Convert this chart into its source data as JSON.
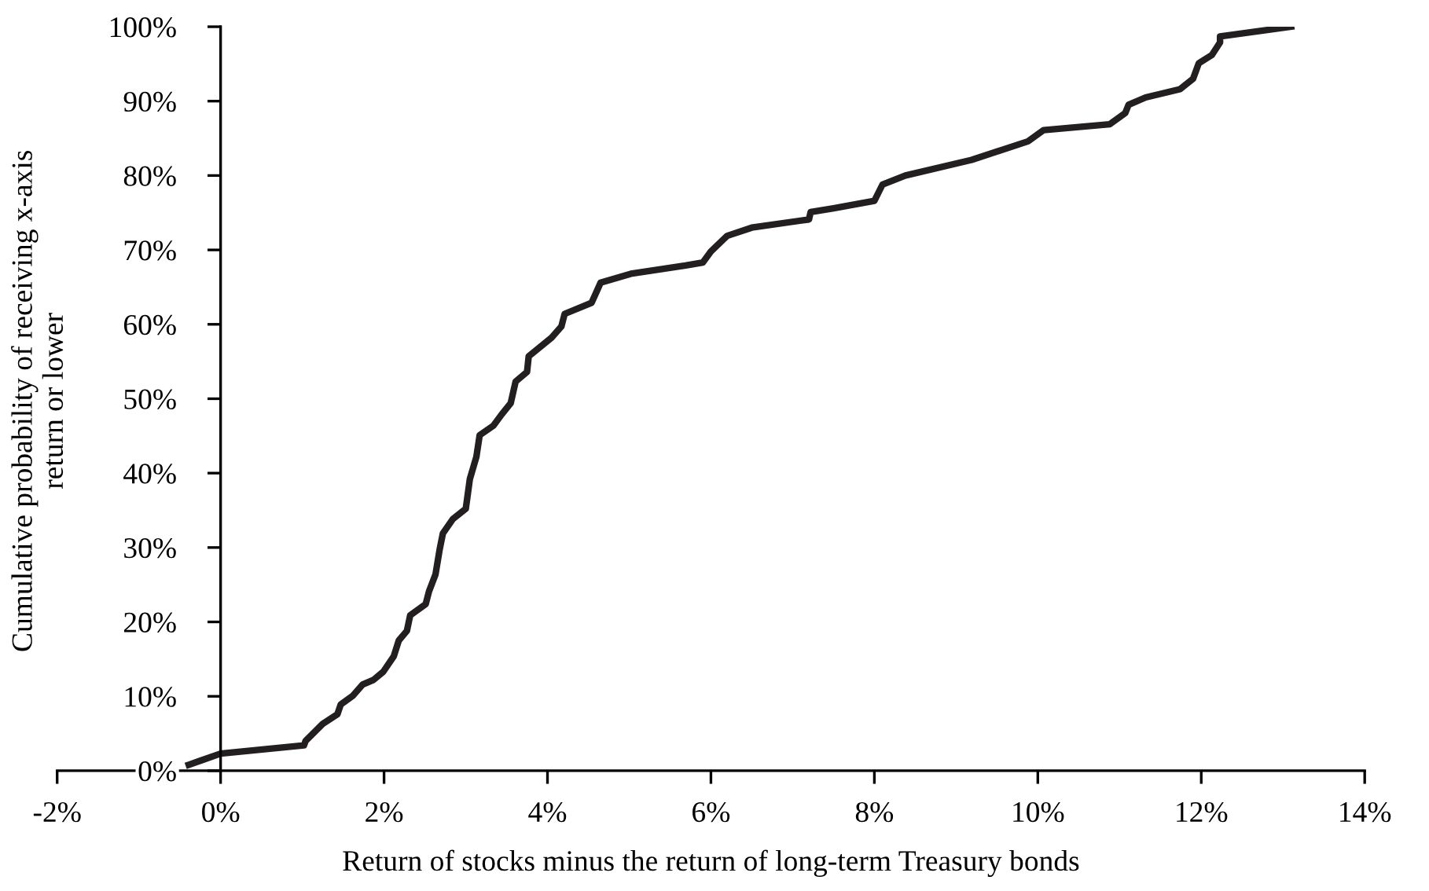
{
  "chart_data": {
    "type": "line",
    "xlabel": "Return of stocks minus the return of long-term Treasury bonds",
    "ylabel": "Cumulative probability of receiving x-axis\nreturn or lower",
    "series": [
      {
        "color": "#231f20",
        "x": [
          -0.39,
          0,
          1.02,
          1.04,
          1.25,
          1.43,
          1.47,
          1.62,
          1.74,
          1.87,
          1.99,
          2.12,
          2.18,
          2.28,
          2.32,
          2.51,
          2.55,
          2.63,
          2.68,
          2.72,
          2.84,
          3.0,
          3.05,
          3.13,
          3.17,
          3.34,
          3.44,
          3.55,
          3.61,
          3.75,
          3.77,
          4.05,
          4.17,
          4.21,
          4.54,
          4.65,
          5.02,
          5.69,
          5.9,
          6.0,
          6.2,
          6.5,
          7.2,
          7.22,
          7.5,
          8.0,
          8.1,
          8.38,
          9.19,
          9.88,
          10.07,
          10.88,
          11.07,
          11.11,
          11.32,
          11.74,
          11.9,
          11.97,
          12.13,
          12.23,
          12.23,
          13.1
        ],
        "values": [
          0.8,
          2.3,
          3.4,
          4.0,
          6.3,
          7.6,
          8.9,
          10.1,
          11.6,
          12.2,
          13.3,
          15.4,
          17.5,
          18.8,
          20.9,
          22.4,
          24.1,
          26.4,
          29.7,
          31.9,
          33.8,
          35.2,
          39.2,
          42.2,
          45.1,
          46.4,
          47.9,
          49.4,
          52.3,
          53.6,
          55.7,
          58.2,
          59.7,
          61.4,
          62.9,
          65.6,
          66.8,
          67.9,
          68.3,
          69.8,
          71.9,
          73.0,
          74.1,
          75.1,
          75.6,
          76.6,
          78.8,
          80.0,
          82.1,
          84.6,
          86.1,
          86.9,
          88.4,
          89.5,
          90.5,
          91.6,
          93.0,
          95.1,
          96.2,
          97.9,
          98.7,
          100
        ]
      }
    ],
    "xlim": [
      -2,
      14
    ],
    "ylim": [
      0,
      100
    ],
    "xticks": [
      {
        "value": -2,
        "label": "-2%"
      },
      {
        "value": 0,
        "label": "0%"
      },
      {
        "value": 2,
        "label": "2%"
      },
      {
        "value": 4,
        "label": "4%"
      },
      {
        "value": 6,
        "label": "6%"
      },
      {
        "value": 8,
        "label": "8%"
      },
      {
        "value": 10,
        "label": "10%"
      },
      {
        "value": 12,
        "label": "12%"
      },
      {
        "value": 14,
        "label": "14%"
      }
    ],
    "yticks": [
      {
        "value": 0,
        "label": "0%"
      },
      {
        "value": 10,
        "label": "10%"
      },
      {
        "value": 20,
        "label": "20%"
      },
      {
        "value": 30,
        "label": "30%"
      },
      {
        "value": 40,
        "label": "40%"
      },
      {
        "value": 50,
        "label": "50%"
      },
      {
        "value": 60,
        "label": "60%"
      },
      {
        "value": 70,
        "label": "70%"
      },
      {
        "value": 80,
        "label": "80%"
      },
      {
        "value": 90,
        "label": "90%"
      },
      {
        "value": 100,
        "label": "100%"
      }
    ],
    "grid": false,
    "legend": false,
    "marker": "none",
    "line_style": "solid"
  }
}
